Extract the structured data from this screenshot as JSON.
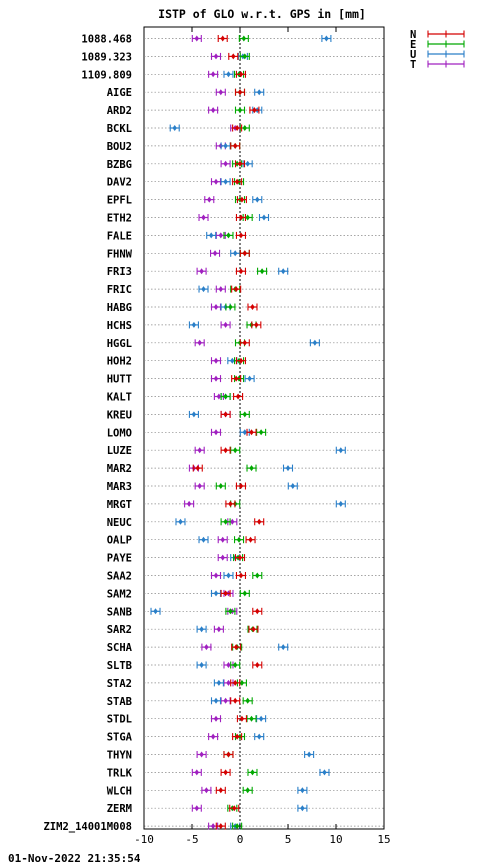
{
  "chart_data": {
    "type": "errorbar",
    "title": "ISTP of GLO w.r.t. GPS in [mm]",
    "xlim": [
      -10,
      15
    ],
    "xticks": [
      -10,
      -5,
      0,
      5,
      10,
      15
    ],
    "grid": "horizontal dotted",
    "legend_position": "top-right",
    "series": [
      {
        "name": "N",
        "color": "#d40000"
      },
      {
        "name": "E",
        "color": "#00a800"
      },
      {
        "name": "U",
        "color": "#2a7fc8"
      },
      {
        "name": "T",
        "color": "#a020c0"
      }
    ],
    "stations": [
      {
        "name": "1088.468",
        "N": -1.8,
        "E": 0.4,
        "U": 9.0,
        "T": -4.5
      },
      {
        "name": "1089.323",
        "N": -0.7,
        "E": 0.5,
        "U": 0.3,
        "T": -2.5
      },
      {
        "name": "1109.809",
        "N": 0.1,
        "E": -0.1,
        "U": -1.2,
        "T": -2.8
      },
      {
        "name": "AIGE",
        "N": 0.0,
        "E": 0.0,
        "U": 2.0,
        "T": -2.0
      },
      {
        "name": "ARD2",
        "N": 1.5,
        "E": 0.0,
        "U": 1.8,
        "T": -2.8
      },
      {
        "name": "BCKL",
        "N": -0.3,
        "E": 0.5,
        "U": -6.8,
        "T": -0.5
      },
      {
        "name": "BOU2",
        "N": -0.5,
        "E": -0.5,
        "U": -1.5,
        "T": -2.0
      },
      {
        "name": "BZBG",
        "N": 0.0,
        "E": -0.3,
        "U": 0.8,
        "T": -1.5
      },
      {
        "name": "DAV2",
        "N": -0.3,
        "E": -0.1,
        "U": -1.5,
        "T": -2.5
      },
      {
        "name": "EPFL",
        "N": 0.2,
        "E": 0.0,
        "U": 1.8,
        "T": -3.2
      },
      {
        "name": "ETH2",
        "N": 0.1,
        "E": 0.8,
        "U": 2.5,
        "T": -3.8
      },
      {
        "name": "FALE",
        "N": 0.1,
        "E": -1.2,
        "U": -3.0,
        "T": -2.0
      },
      {
        "name": "FHNW",
        "N": 0.5,
        "E": 0.5,
        "U": -0.5,
        "T": -2.6
      },
      {
        "name": "FRI3",
        "N": 0.1,
        "E": 2.3,
        "U": 4.5,
        "T": -4.0
      },
      {
        "name": "FRIC",
        "N": -0.4,
        "E": -0.5,
        "U": -3.8,
        "T": -2.0
      },
      {
        "name": "HABG",
        "N": 1.3,
        "E": -1.0,
        "U": -1.5,
        "T": -2.5
      },
      {
        "name": "HCHS",
        "N": 1.7,
        "E": 1.2,
        "U": -4.8,
        "T": -1.5
      },
      {
        "name": "HGGL",
        "N": 0.5,
        "E": 0.0,
        "U": 7.8,
        "T": -4.2
      },
      {
        "name": "HOH2",
        "N": 0.1,
        "E": -0.1,
        "U": -0.8,
        "T": -2.5
      },
      {
        "name": "HUTT",
        "N": -0.4,
        "E": -0.1,
        "U": 1.0,
        "T": -2.5
      },
      {
        "name": "KALT",
        "N": -0.2,
        "E": -1.5,
        "U": -1.5,
        "T": -2.2
      },
      {
        "name": "KREU",
        "N": -1.5,
        "E": 0.5,
        "U": -4.8,
        "T": -1.5
      },
      {
        "name": "LOMO",
        "N": 1.2,
        "E": 2.2,
        "U": 0.5,
        "T": -2.5
      },
      {
        "name": "LUZE",
        "N": -1.5,
        "E": -0.5,
        "U": 10.5,
        "T": -4.2
      },
      {
        "name": "MAR2",
        "N": -4.4,
        "E": 1.2,
        "U": 5.0,
        "T": -4.8
      },
      {
        "name": "MAR3",
        "N": 0.1,
        "E": -2.0,
        "U": 5.5,
        "T": -4.2
      },
      {
        "name": "MRGT",
        "N": -1.0,
        "E": -0.5,
        "U": 10.5,
        "T": -5.3
      },
      {
        "name": "NEUC",
        "N": 2.0,
        "E": -1.5,
        "U": -6.2,
        "T": -0.8
      },
      {
        "name": "OALP",
        "N": 1.1,
        "E": -0.1,
        "U": -3.8,
        "T": -1.8
      },
      {
        "name": "PAYE",
        "N": 0.0,
        "E": -0.2,
        "U": -0.5,
        "T": -1.8
      },
      {
        "name": "SAA2",
        "N": 0.1,
        "E": 1.8,
        "U": -1.2,
        "T": -2.5
      },
      {
        "name": "SAM2",
        "N": -1.5,
        "E": 0.5,
        "U": -2.5,
        "T": -1.2
      },
      {
        "name": "SANB",
        "N": 1.8,
        "E": -1.0,
        "U": -8.8,
        "T": -0.8
      },
      {
        "name": "SAR2",
        "N": 1.4,
        "E": 1.3,
        "U": -4.0,
        "T": -2.2
      },
      {
        "name": "SCHA",
        "N": -0.4,
        "E": -0.3,
        "U": 4.5,
        "T": -3.5
      },
      {
        "name": "SLTB",
        "N": 1.8,
        "E": -0.5,
        "U": -4.0,
        "T": -1.2
      },
      {
        "name": "STA2",
        "N": -0.5,
        "E": 0.2,
        "U": -2.2,
        "T": -1.2
      },
      {
        "name": "STAB",
        "N": -0.5,
        "E": 0.8,
        "U": -2.5,
        "T": -1.5
      },
      {
        "name": "STDL",
        "N": 0.2,
        "E": 1.2,
        "U": 2.2,
        "T": -2.5
      },
      {
        "name": "STGA",
        "N": -0.3,
        "E": 0.0,
        "U": 2.0,
        "T": -2.8
      },
      {
        "name": "THYN",
        "N": -1.2,
        "E": -1.2,
        "U": 7.2,
        "T": -4.0
      },
      {
        "name": "TRLK",
        "N": -1.5,
        "E": 1.3,
        "U": 8.8,
        "T": -4.5
      },
      {
        "name": "WLCH",
        "N": -2.0,
        "E": 0.8,
        "U": 6.5,
        "T": -3.5
      },
      {
        "name": "ZERM",
        "N": -0.6,
        "E": -0.8,
        "U": 6.5,
        "T": -4.5
      },
      {
        "name": "ZIM2_14001M008",
        "N": -2.0,
        "E": -0.3,
        "U": -0.5,
        "T": -2.8
      }
    ]
  },
  "footer": {
    "timestamp": "01-Nov-2022 21:35:54"
  }
}
